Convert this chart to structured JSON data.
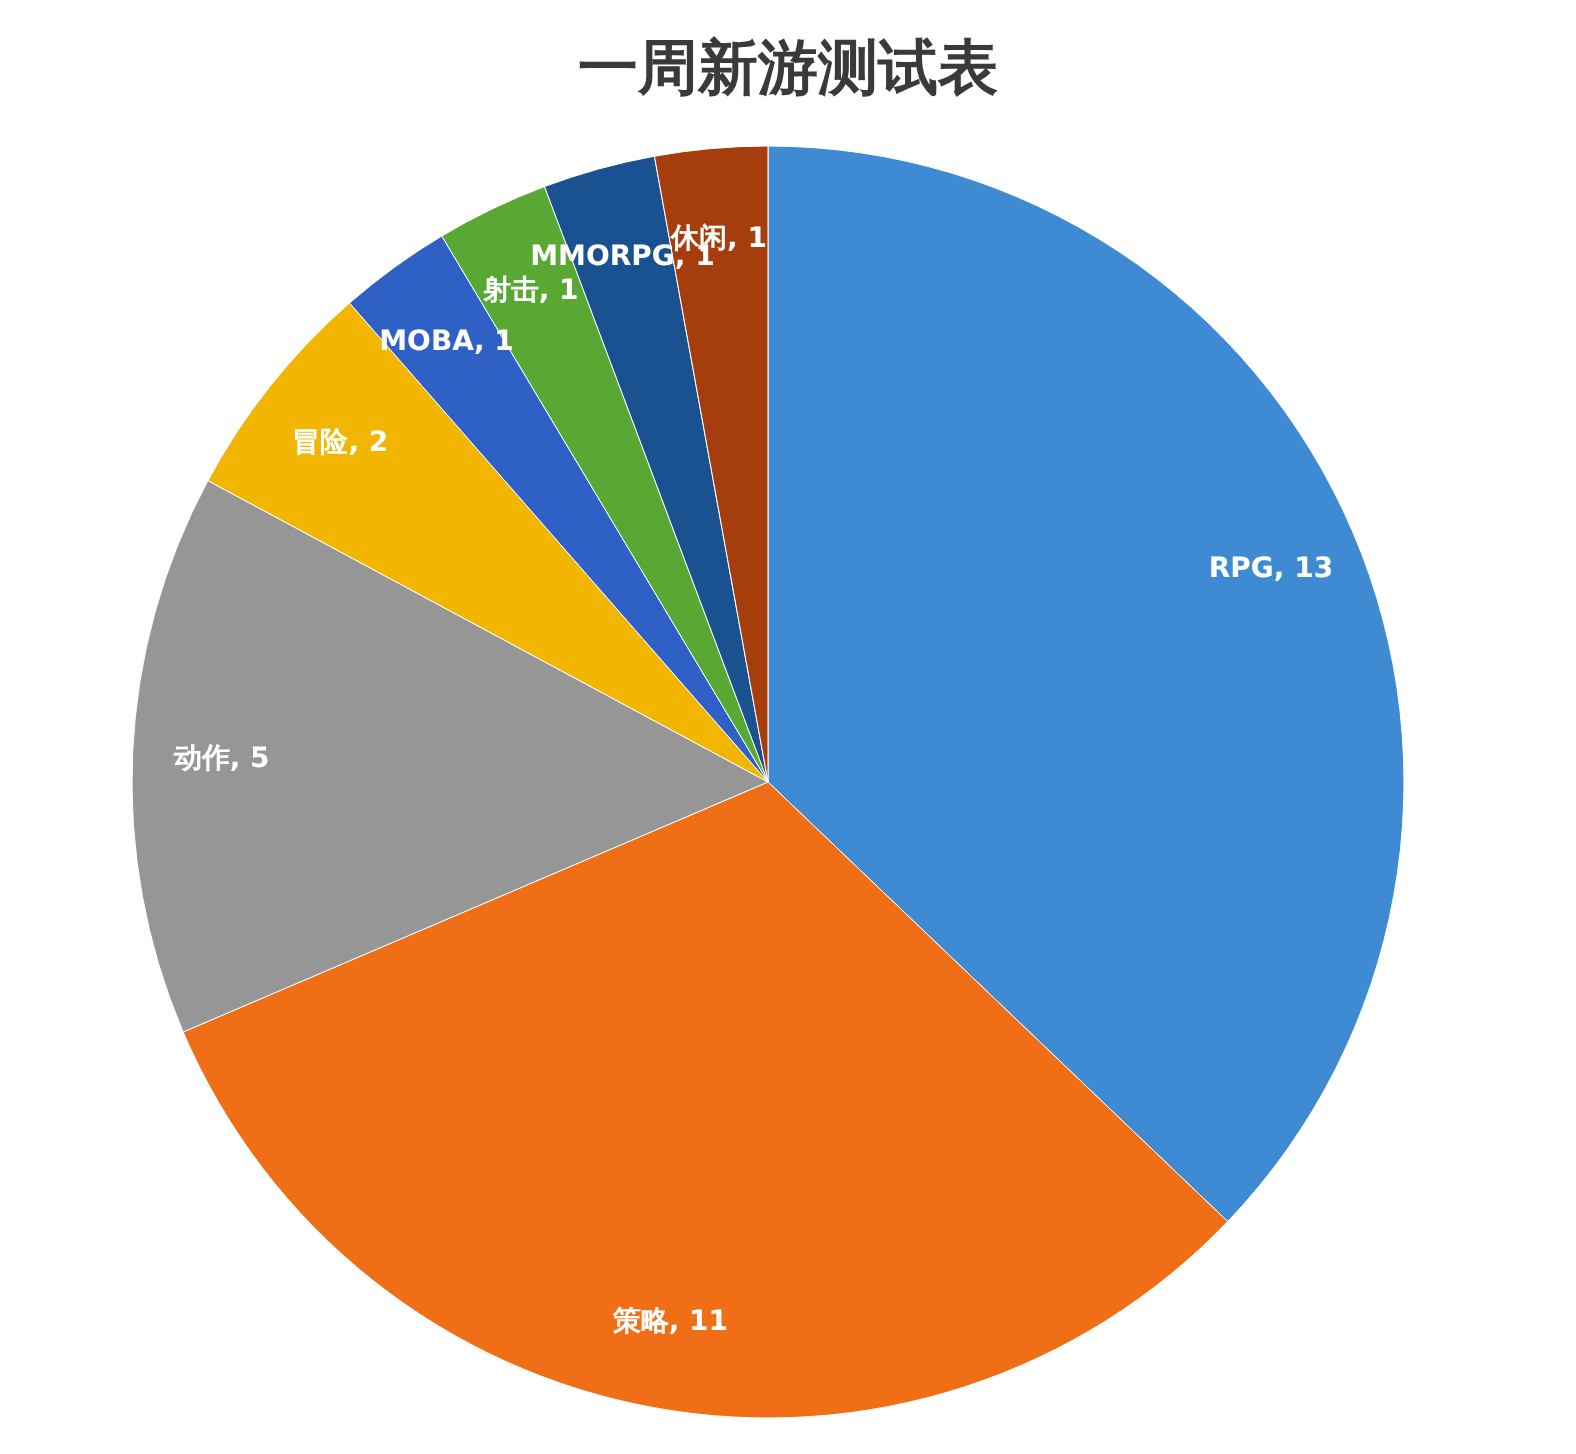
{
  "chart_data": {
    "type": "pie",
    "title": "一周新游测试表",
    "categories": [
      "RPG",
      "策略",
      "动作",
      "冒险",
      "MOBA",
      "射击",
      "MMORPG",
      "休闲"
    ],
    "values": [
      13,
      11,
      5,
      2,
      1,
      1,
      1,
      1
    ],
    "colors": [
      "#3f8bd3",
      "#f06e16",
      "#969696",
      "#f2b600",
      "#2f60c6",
      "#5aa834",
      "#1a5190",
      "#a63d0c"
    ],
    "value_labels": [
      ", 13",
      ", 11",
      ", 5",
      ", 2",
      ", 1",
      ", 1",
      ", 1",
      ", 1"
    ],
    "legend": false
  }
}
